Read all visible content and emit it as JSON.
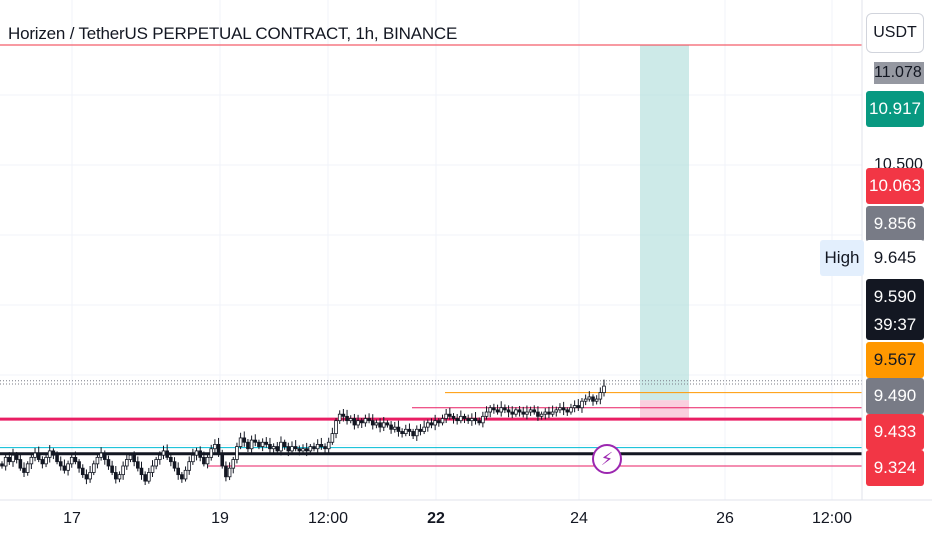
{
  "header": {
    "title": "Horizen / TetherUS PERPETUAL CONTRACT, 1h, BINANCE",
    "currency": "USDT"
  },
  "price_axis": {
    "ticks": [
      {
        "label": "11.078",
        "price": 11.078
      },
      {
        "label": "10.500",
        "price": 10.5
      }
    ],
    "badges": [
      {
        "label": "10.917",
        "color": "#089981",
        "price": 10.917
      },
      {
        "label": "10.063",
        "color": "#f23645",
        "price": 10.063
      },
      {
        "label": "9.856",
        "color": "#787b86",
        "price": 9.856
      },
      {
        "label": "9.645",
        "color": "#ffffff",
        "text_color": "#131722",
        "price": 9.645
      },
      {
        "label": "9.590",
        "color": "#131722",
        "price": 9.59
      },
      {
        "label": "39:37",
        "color": "#131722",
        "price": 9.59
      },
      {
        "label": "9.567",
        "color": "#ff9800",
        "price": 9.567
      },
      {
        "label": "9.490",
        "color": "#787b86",
        "price": 9.49
      },
      {
        "label": "9.433",
        "color": "#f23645",
        "price": 9.433
      },
      {
        "label": "9.324",
        "color": "#f23645",
        "price": 9.324
      }
    ],
    "high_label": "High"
  },
  "time_axis": {
    "ticks": [
      {
        "label": "17",
        "bold": false
      },
      {
        "label": "19",
        "bold": false
      },
      {
        "label": "12:00",
        "bold": false
      },
      {
        "label": "22",
        "bold": true
      },
      {
        "label": "24",
        "bold": false
      },
      {
        "label": "26",
        "bold": false
      },
      {
        "label": "12:00",
        "bold": false
      }
    ]
  },
  "colors": {
    "candle": "#131722",
    "accent_red": "#f23645",
    "accent_green": "#089981",
    "accent_orange": "#ff9800",
    "line_cyan": "#00bcd4",
    "line_pink": "#e91e63",
    "flash_icon": "#9c27b0"
  },
  "icons": {
    "flash": "lightning-bolt-icon"
  },
  "chart_data": {
    "type": "candlestick",
    "title": "Horizen / TetherUS PERPETUAL CONTRACT, 1h, BINANCE",
    "xlabel": "",
    "ylabel": "",
    "grid": true,
    "horizontal_levels": [
      {
        "price": 11.2,
        "color": "#f23645",
        "style": "solid"
      },
      {
        "price": 9.645,
        "color": "#787b86",
        "style": "dotted"
      },
      {
        "price": 9.63,
        "color": "#787b86",
        "style": "dotted"
      },
      {
        "price": 9.59,
        "color": "#ff9800",
        "style": "solid"
      },
      {
        "price": 9.52,
        "color": "#e91e63",
        "style": "thin"
      },
      {
        "price": 9.467,
        "color": "#e91e63",
        "style": "thick"
      },
      {
        "price": 9.335,
        "color": "#00bcd4",
        "style": "thin"
      },
      {
        "price": 9.307,
        "color": "#131722",
        "style": "thick"
      },
      {
        "price": 9.25,
        "color": "#e91e63",
        "style": "thin"
      }
    ],
    "position_tool": {
      "target": 11.2,
      "entry": 9.555,
      "stop": 9.467
    },
    "close": [
      9.25,
      9.29,
      9.27,
      9.3,
      9.28,
      9.24,
      9.22,
      9.26,
      9.29,
      9.31,
      9.28,
      9.26,
      9.29,
      9.32,
      9.3,
      9.27,
      9.25,
      9.23,
      9.26,
      9.29,
      9.27,
      9.24,
      9.21,
      9.19,
      9.22,
      9.26,
      9.29,
      9.31,
      9.28,
      9.25,
      9.22,
      9.19,
      9.21,
      9.25,
      9.28,
      9.3,
      9.27,
      9.24,
      9.21,
      9.18,
      9.22,
      9.25,
      9.28,
      9.3,
      9.32,
      9.29,
      9.27,
      9.24,
      9.21,
      9.19,
      9.23,
      9.27,
      9.3,
      9.32,
      9.29,
      9.26,
      9.29,
      9.33,
      9.35,
      9.31,
      9.25,
      9.2,
      9.24,
      9.28,
      9.34,
      9.38,
      9.36,
      9.33,
      9.37,
      9.36,
      9.34,
      9.36,
      9.35,
      9.33,
      9.34,
      9.32,
      9.36,
      9.34,
      9.32,
      9.34,
      9.33,
      9.32,
      9.33,
      9.32,
      9.34,
      9.33,
      9.35,
      9.34,
      9.33,
      9.36,
      9.4,
      9.46,
      9.49,
      9.48,
      9.46,
      9.47,
      9.44,
      9.46,
      9.45,
      9.47,
      9.46,
      9.44,
      9.45,
      9.43,
      9.45,
      9.44,
      9.42,
      9.43,
      9.41,
      9.4,
      9.42,
      9.41,
      9.39,
      9.42,
      9.41,
      9.43,
      9.45,
      9.44,
      9.46,
      9.45,
      9.47,
      9.49,
      9.48,
      9.47,
      9.46,
      9.48,
      9.47,
      9.46,
      9.47,
      9.46,
      9.45,
      9.48,
      9.5,
      9.52,
      9.51,
      9.5,
      9.52,
      9.51,
      9.5,
      9.49,
      9.51,
      9.5,
      9.49,
      9.5,
      9.51,
      9.5,
      9.48,
      9.49,
      9.5,
      9.49,
      9.5,
      9.51,
      9.52,
      9.51,
      9.5,
      9.52,
      9.53,
      9.52,
      9.55,
      9.56,
      9.57,
      9.55,
      9.56,
      9.59,
      9.62
    ]
  }
}
